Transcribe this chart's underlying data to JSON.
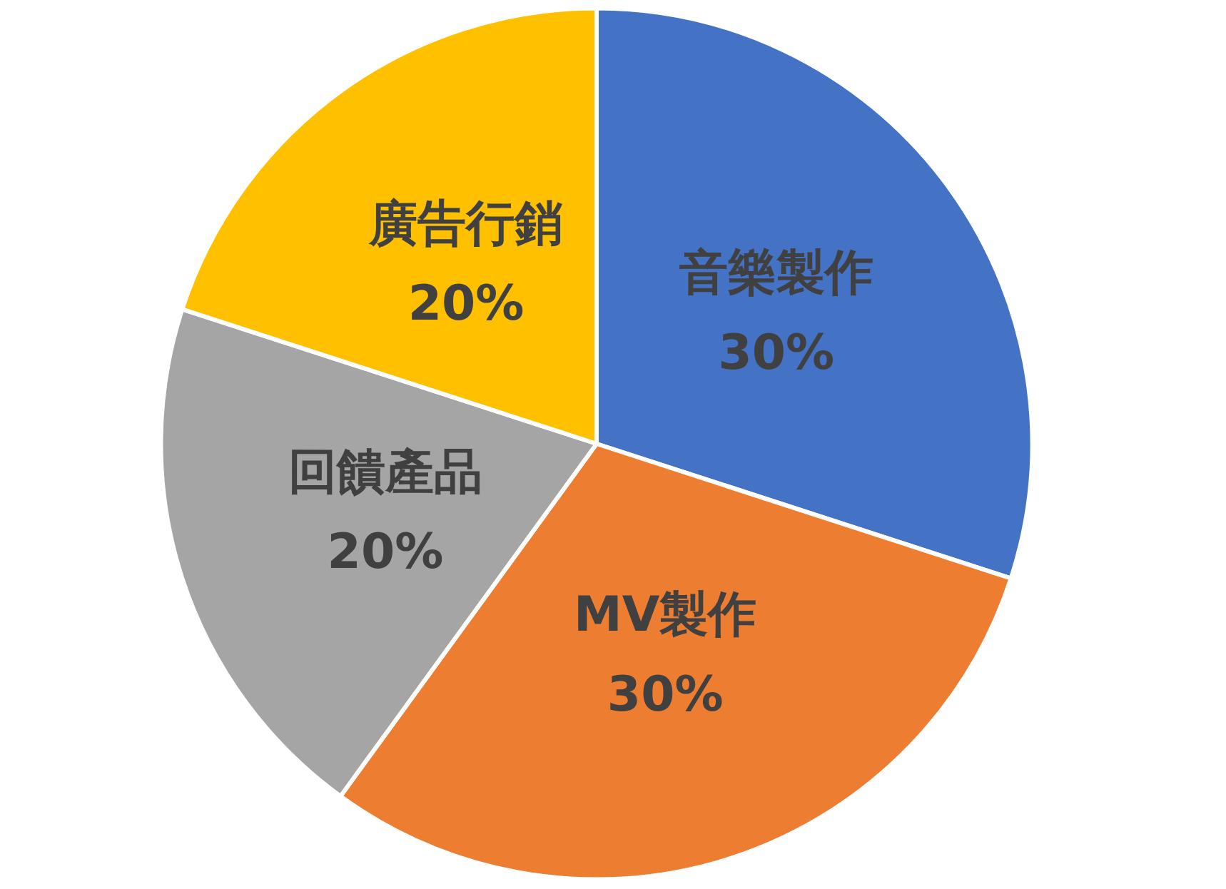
{
  "chart_data": {
    "type": "pie",
    "categories": [
      "音樂製作",
      "MV製作",
      "回饋產品",
      "廣告行銷"
    ],
    "values": [
      30,
      30,
      20,
      20
    ],
    "value_labels": [
      "30%",
      "30%",
      "20%",
      "20%"
    ],
    "colors": [
      "#4472c4",
      "#ed7d31",
      "#a5a5a5",
      "#ffc000"
    ]
  }
}
